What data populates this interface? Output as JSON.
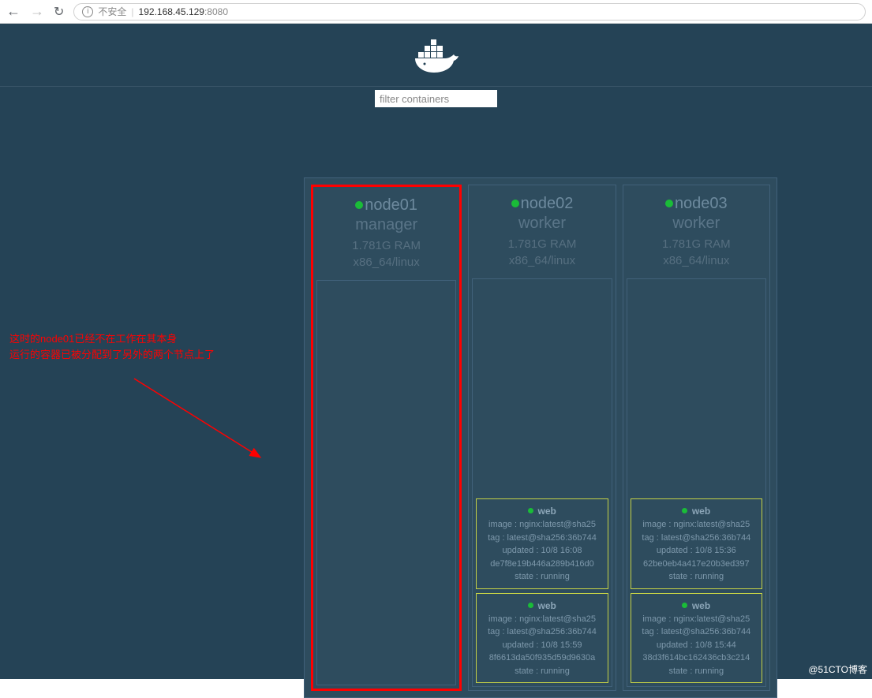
{
  "browser": {
    "secureLabel": "不安全",
    "ip": "192.168.45.129",
    "port": ":8080"
  },
  "filter": {
    "placeholder": "filter containers"
  },
  "colors": {
    "pageBg": "#254356",
    "panelBg": "#2e4c5e",
    "border": "#41617a",
    "highlight": "#ff0000",
    "containerBorder": "#c4d046",
    "statusGreen": "#1abc38"
  },
  "annotation": {
    "line1": "这时的node01已经不在工作在其本身",
    "line2": "运行的容器已被分配到了另外的两个节点上了"
  },
  "credit": "@51CTO博客",
  "nodes": [
    {
      "name": "node01",
      "role": "manager",
      "ram": "1.781G RAM",
      "arch": "x86_64/linux",
      "highlighted": true,
      "containers": []
    },
    {
      "name": "node02",
      "role": "worker",
      "ram": "1.781G RAM",
      "arch": "x86_64/linux",
      "highlighted": false,
      "containers": [
        {
          "name": "web",
          "image": "image : nginx:latest@sha25",
          "tag": "tag : latest@sha256:36b744",
          "updated": "updated : 10/8 16:08",
          "hash": "de7f8e19b446a289b416d0",
          "state": "state : running"
        },
        {
          "name": "web",
          "image": "image : nginx:latest@sha25",
          "tag": "tag : latest@sha256:36b744",
          "updated": "updated : 10/8 15:59",
          "hash": "8f6613da50f935d59d9630a",
          "state": "state : running"
        }
      ]
    },
    {
      "name": "node03",
      "role": "worker",
      "ram": "1.781G RAM",
      "arch": "x86_64/linux",
      "highlighted": false,
      "containers": [
        {
          "name": "web",
          "image": "image : nginx:latest@sha25",
          "tag": "tag : latest@sha256:36b744",
          "updated": "updated : 10/8 15:36",
          "hash": "62be0eb4a417e20b3ed397",
          "state": "state : running"
        },
        {
          "name": "web",
          "image": "image : nginx:latest@sha25",
          "tag": "tag : latest@sha256:36b744",
          "updated": "updated : 10/8 15:44",
          "hash": "38d3f614bc162436cb3c214",
          "state": "state : running"
        }
      ]
    }
  ]
}
